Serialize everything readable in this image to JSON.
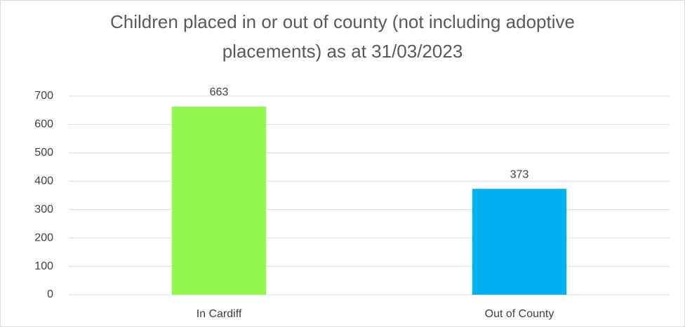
{
  "chart_data": {
    "type": "bar",
    "title": "Children placed in or out of county (not including adoptive placements) as at 31/03/2023",
    "categories": [
      "In Cardiff",
      "Out of County"
    ],
    "values": [
      663,
      373
    ],
    "colors": [
      "#92f74a",
      "#00b0f0"
    ],
    "ylim": [
      0,
      700
    ],
    "yticks": [
      0,
      100,
      200,
      300,
      400,
      500,
      600,
      700
    ],
    "grid": true
  }
}
